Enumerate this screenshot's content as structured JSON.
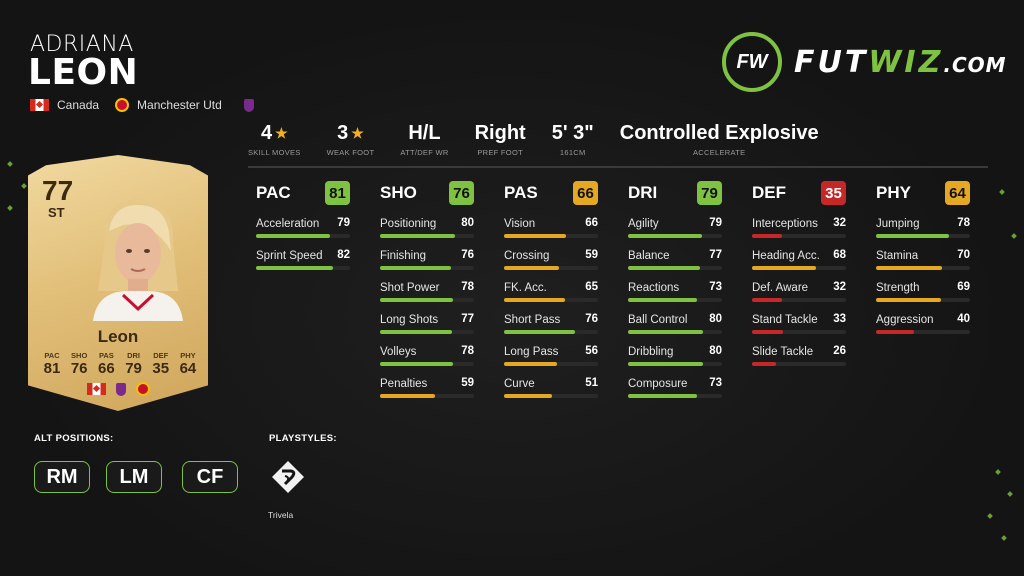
{
  "player": {
    "first_name": "ADRIANA",
    "last_name": "LEON",
    "nation": "Canada",
    "club": "Manchester Utd"
  },
  "brand": {
    "logo_mark": "FW",
    "name_part1": "FUT",
    "name_part2": "WIZ",
    "name_suffix": ".COM",
    "accent": "#7fc241"
  },
  "info": [
    {
      "value": "4",
      "star": true,
      "label": "SKILL MOVES"
    },
    {
      "value": "3",
      "star": true,
      "label": "WEAK FOOT"
    },
    {
      "value": "H/L",
      "star": false,
      "label": "ATT/DEF WR"
    },
    {
      "value": "Right",
      "star": false,
      "label": "PREF FOOT"
    },
    {
      "value": "5' 3\"",
      "star": false,
      "label": "161CM"
    },
    {
      "value": "Controlled Explosive",
      "star": false,
      "label": "ACCELERATE"
    }
  ],
  "card": {
    "rating": "77",
    "position": "ST",
    "name": "Leon",
    "stat_labels": [
      "PAC",
      "SHO",
      "PAS",
      "DRI",
      "DEF",
      "PHY"
    ],
    "stat_values": [
      "81",
      "76",
      "66",
      "79",
      "35",
      "64"
    ]
  },
  "colors": {
    "green": "#7fc241",
    "yellow": "#e5a823",
    "red": "#c62828"
  },
  "stat_groups": [
    {
      "name": "PAC",
      "value": "81",
      "color": "green",
      "stats": [
        {
          "label": "Acceleration",
          "value": "79",
          "color": "green"
        },
        {
          "label": "Sprint Speed",
          "value": "82",
          "color": "green"
        }
      ]
    },
    {
      "name": "SHO",
      "value": "76",
      "color": "green",
      "stats": [
        {
          "label": "Positioning",
          "value": "80",
          "color": "green"
        },
        {
          "label": "Finishing",
          "value": "76",
          "color": "green"
        },
        {
          "label": "Shot Power",
          "value": "78",
          "color": "green"
        },
        {
          "label": "Long Shots",
          "value": "77",
          "color": "green"
        },
        {
          "label": "Volleys",
          "value": "78",
          "color": "green"
        },
        {
          "label": "Penalties",
          "value": "59",
          "color": "yellow"
        }
      ]
    },
    {
      "name": "PAS",
      "value": "66",
      "color": "yellow",
      "stats": [
        {
          "label": "Vision",
          "value": "66",
          "color": "yellow"
        },
        {
          "label": "Crossing",
          "value": "59",
          "color": "yellow"
        },
        {
          "label": "FK. Acc.",
          "value": "65",
          "color": "yellow"
        },
        {
          "label": "Short Pass",
          "value": "76",
          "color": "green"
        },
        {
          "label": "Long Pass",
          "value": "56",
          "color": "yellow"
        },
        {
          "label": "Curve",
          "value": "51",
          "color": "yellow"
        }
      ]
    },
    {
      "name": "DRI",
      "value": "79",
      "color": "green",
      "stats": [
        {
          "label": "Agility",
          "value": "79",
          "color": "green"
        },
        {
          "label": "Balance",
          "value": "77",
          "color": "green"
        },
        {
          "label": "Reactions",
          "value": "73",
          "color": "green"
        },
        {
          "label": "Ball Control",
          "value": "80",
          "color": "green"
        },
        {
          "label": "Dribbling",
          "value": "80",
          "color": "green"
        },
        {
          "label": "Composure",
          "value": "73",
          "color": "green"
        }
      ]
    },
    {
      "name": "DEF",
      "value": "35",
      "color": "red",
      "stats": [
        {
          "label": "Interceptions",
          "value": "32",
          "color": "red"
        },
        {
          "label": "Heading Acc.",
          "value": "68",
          "color": "yellow"
        },
        {
          "label": "Def. Aware",
          "value": "32",
          "color": "red"
        },
        {
          "label": "Stand Tackle",
          "value": "33",
          "color": "red"
        },
        {
          "label": "Slide Tackle",
          "value": "26",
          "color": "red"
        }
      ]
    },
    {
      "name": "PHY",
      "value": "64",
      "color": "yellow",
      "stats": [
        {
          "label": "Jumping",
          "value": "78",
          "color": "green"
        },
        {
          "label": "Stamina",
          "value": "70",
          "color": "yellow"
        },
        {
          "label": "Strength",
          "value": "69",
          "color": "yellow"
        },
        {
          "label": "Aggression",
          "value": "40",
          "color": "red"
        }
      ]
    }
  ],
  "alt_positions": {
    "title": "ALT POSITIONS:",
    "items": [
      "RM",
      "LM",
      "CF"
    ]
  },
  "playstyles": {
    "title": "PLAYSTYLES:",
    "items": [
      {
        "label": "Trivela",
        "icon": "trivela-icon"
      }
    ]
  }
}
